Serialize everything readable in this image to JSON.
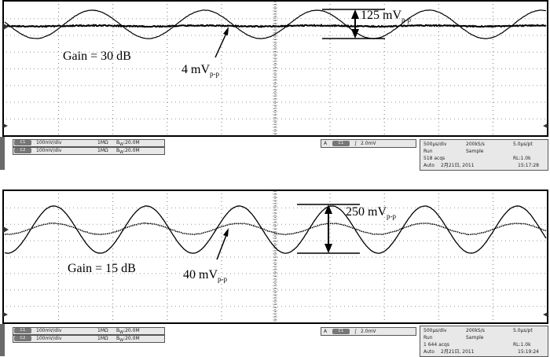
{
  "panels": [
    {
      "gain_label": "Gain = 30 dB",
      "small_signal": {
        "value": "4 mV",
        "sub": "p-p"
      },
      "large_signal": {
        "value": "125 mV",
        "sub": "p-p"
      },
      "ch1": {
        "badge": "C1",
        "scale": "100mV/div",
        "imp": "1MΩ",
        "bw": "B",
        "bw_sub": "W",
        "bw_val": ":20.0M"
      },
      "ch2": {
        "badge": "C2",
        "scale": "100mV/div",
        "imp": "1MΩ",
        "bw": "B",
        "bw_sub": "W",
        "bw_val": ":20.0M"
      },
      "trigger": {
        "mode": "A",
        "source": "C1",
        "slope": "∫",
        "level": "2.0mV"
      },
      "acq": {
        "timebase": "500µs/div",
        "rate": "200kS/s",
        "res": "5.0µs/pt",
        "state": "Run",
        "mode": "Sample",
        "count": "518 acqs",
        "rl": "RL:1.0k",
        "auto": "Auto",
        "date": "2月21日, 2011",
        "time": "15:17:28"
      }
    },
    {
      "gain_label": "Gain = 15 dB",
      "small_signal": {
        "value": "40 mV",
        "sub": "p-p"
      },
      "large_signal": {
        "value": "250 mV",
        "sub": "p-p"
      },
      "ch1": {
        "badge": "C1",
        "scale": "100mV/div",
        "imp": "1MΩ",
        "bw": "B",
        "bw_sub": "W",
        "bw_val": ":20.0M"
      },
      "ch2": {
        "badge": "C2",
        "scale": "100mV/div",
        "imp": "1MΩ",
        "bw": "B",
        "bw_sub": "W",
        "bw_val": ":20.0M"
      },
      "trigger": {
        "mode": "A",
        "source": "C1",
        "slope": "∫",
        "level": "2.0mV"
      },
      "acq": {
        "timebase": "500µs/div",
        "rate": "200kS/s",
        "res": "5.0µs/pt",
        "state": "Run",
        "mode": "Sample",
        "count": "1 644 acqs",
        "rl": "RL:1.0k",
        "auto": "Auto",
        "date": "2月21日, 2011",
        "time": "15:19:24"
      }
    }
  ],
  "colors": {
    "screen_bg": "#ffffff",
    "trace": "#000000",
    "grid": "#777777",
    "status_bg": "#e8e8e8"
  },
  "icons": {
    "trigger_marker": "arrow-left-icon",
    "ground_marker": "circle-marker-icon"
  }
}
